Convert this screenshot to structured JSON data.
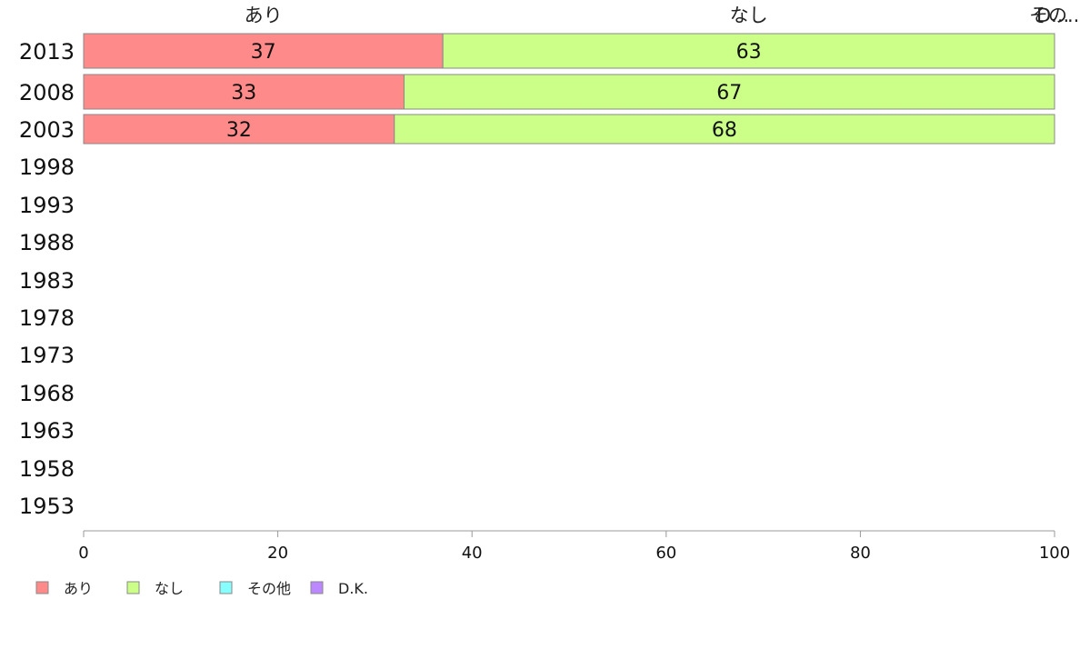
{
  "chart_data": {
    "type": "bar",
    "orientation": "horizontal-stacked",
    "categories": [
      "2013",
      "2008",
      "2003",
      "1998",
      "1993",
      "1988",
      "1983",
      "1978",
      "1973",
      "1968",
      "1963",
      "1958",
      "1953"
    ],
    "series": [
      {
        "name": "あり",
        "color": "#ff8a8a",
        "values": [
          37,
          33,
          32,
          null,
          null,
          null,
          null,
          null,
          null,
          null,
          null,
          null,
          null
        ],
        "labels": [
          "37",
          "33",
          "32"
        ]
      },
      {
        "name": "なし",
        "color": "#ccff88",
        "values": [
          63,
          67,
          68,
          null,
          null,
          null,
          null,
          null,
          null,
          null,
          null,
          null,
          null
        ],
        "labels": [
          "63",
          "67",
          "68"
        ]
      },
      {
        "name": "その他",
        "color": "#88ffff",
        "values": [
          0,
          0,
          0,
          null,
          null,
          null,
          null,
          null,
          null,
          null,
          null,
          null,
          null
        ]
      },
      {
        "name": "D.K.",
        "color": "#bb88ff",
        "values": [
          0,
          0,
          0,
          null,
          null,
          null,
          null,
          null,
          null,
          null,
          null,
          null,
          null
        ]
      }
    ],
    "top_labels": [
      "あり",
      "なし",
      "その...",
      "D..."
    ],
    "xlim": [
      0,
      100
    ],
    "xticks": [
      "0",
      "20",
      "40",
      "60",
      "80",
      "100"
    ],
    "grid": false,
    "legend_position": "bottom-left"
  }
}
